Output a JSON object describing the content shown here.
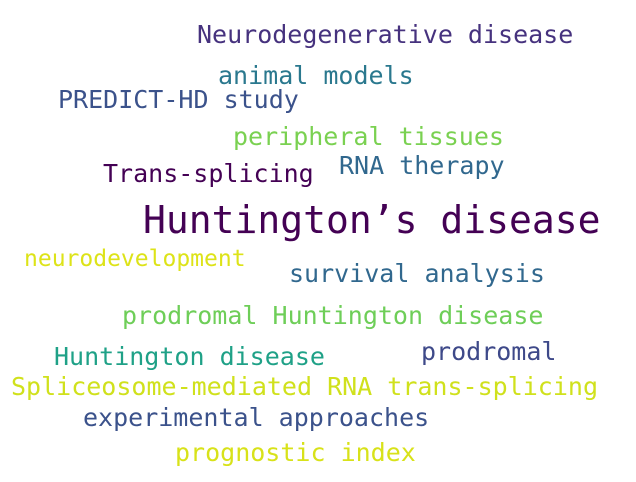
{
  "words": [
    {
      "text": "Neurodegenerative disease",
      "color": "#46327e"
    },
    {
      "text": "animal models",
      "color": "#2a788e"
    },
    {
      "text": "PREDICT-HD study",
      "color": "#3b528b"
    },
    {
      "text": "peripheral tissues",
      "color": "#7ad151"
    },
    {
      "text": "RNA therapy",
      "color": "#31688e"
    },
    {
      "text": "Trans-splicing",
      "color": "#440154"
    },
    {
      "text": "Huntington’s disease",
      "color": "#440154"
    },
    {
      "text": "neurodevelopment",
      "color": "#dde318"
    },
    {
      "text": "survival analysis",
      "color": "#31688e"
    },
    {
      "text": "prodromal Huntington disease",
      "color": "#6ece58"
    },
    {
      "text": "prodromal",
      "color": "#3e4989"
    },
    {
      "text": "Huntington disease",
      "color": "#1fa187"
    },
    {
      "text": "Spliceosome-mediated RNA trans-splicing",
      "color": "#d0e11c"
    },
    {
      "text": "experimental approaches",
      "color": "#3b528b"
    },
    {
      "text": "prognostic index",
      "color": "#d8e219"
    }
  ]
}
